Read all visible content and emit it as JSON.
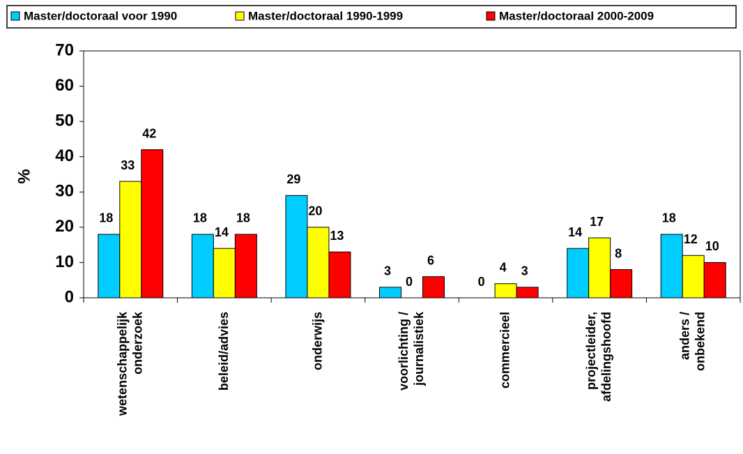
{
  "chart_data": {
    "type": "bar",
    "categories": [
      "wetenschappelijk\nonderzoek",
      "beleid/advies",
      "onderwijs",
      "voorlichting /\njournalistiek",
      "commercieel",
      "projectleider,\nafdelingshoofd",
      "anders /\nonbekend"
    ],
    "series": [
      {
        "name": "Master/doctoraal voor 1990",
        "color": "#00ccff",
        "values": [
          18,
          18,
          29,
          3,
          0,
          14,
          18
        ]
      },
      {
        "name": "Master/doctoraal 1990-1999",
        "color": "#ffff00",
        "values": [
          33,
          14,
          20,
          0,
          4,
          17,
          12
        ]
      },
      {
        "name": "Master/doctoraal 2000-2009",
        "color": "#ff0000",
        "values": [
          42,
          18,
          13,
          6,
          3,
          8,
          10
        ]
      }
    ],
    "y_label": "%",
    "ylim": [
      0,
      70
    ],
    "yticks": [
      0,
      10,
      20,
      30,
      40,
      50,
      60,
      70
    ],
    "legend": "top",
    "grid": false
  }
}
